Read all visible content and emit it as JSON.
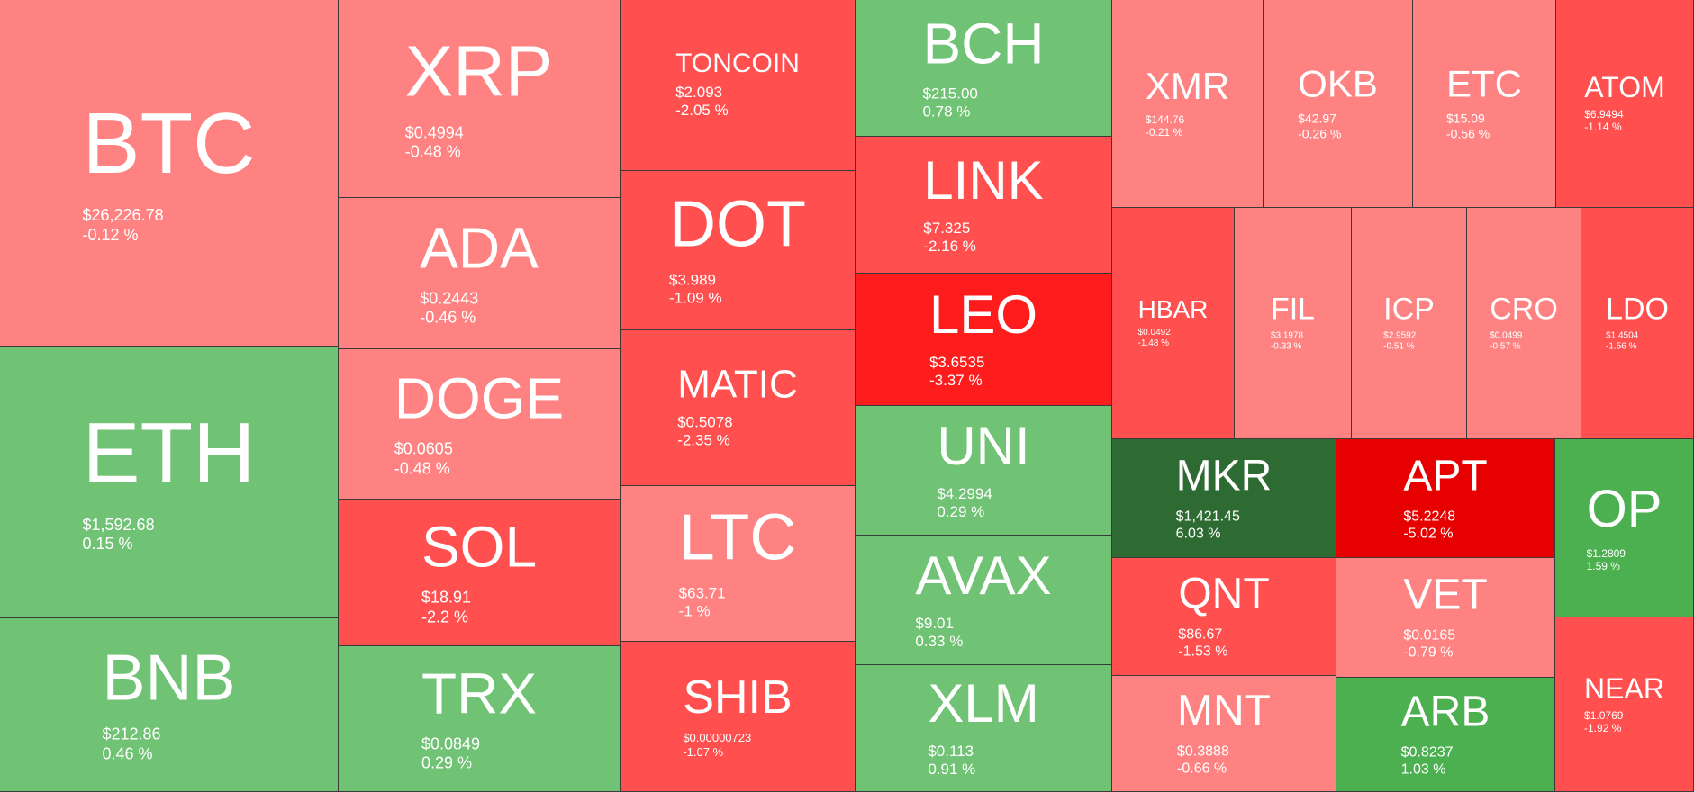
{
  "chart_data": {
    "type": "treemap",
    "colors": {
      "up_light": "#70c274",
      "up_mid": "#4caf50",
      "up_dark": "#2e6b33",
      "down_light": "#ff8282",
      "down_mid": "#ff4f4f",
      "down_strong": "#ff1c1c",
      "down_dark": "#e60000"
    },
    "tiles": [
      {
        "symbol": "BTC",
        "price": "$26,226.78",
        "change": "-0.12 %",
        "change_value": -0.12,
        "color": "#ff8282"
      },
      {
        "symbol": "ETH",
        "price": "$1,592.68",
        "change": "0.15 %",
        "change_value": 0.15,
        "color": "#70c274"
      },
      {
        "symbol": "BNB",
        "price": "$212.86",
        "change": "0.46 %",
        "change_value": 0.46,
        "color": "#70c274"
      },
      {
        "symbol": "XRP",
        "price": "$0.4994",
        "change": "-0.48 %",
        "change_value": -0.48,
        "color": "#ff8282"
      },
      {
        "symbol": "ADA",
        "price": "$0.2443",
        "change": "-0.46 %",
        "change_value": -0.46,
        "color": "#ff8282"
      },
      {
        "symbol": "DOGE",
        "price": "$0.0605",
        "change": "-0.48 %",
        "change_value": -0.48,
        "color": "#ff8282"
      },
      {
        "symbol": "SOL",
        "price": "$18.91",
        "change": "-2.2 %",
        "change_value": -2.2,
        "color": "#ff4f4f"
      },
      {
        "symbol": "TRX",
        "price": "$0.0849",
        "change": "0.29 %",
        "change_value": 0.29,
        "color": "#70c274"
      },
      {
        "symbol": "TONCOIN",
        "price": "$2.093",
        "change": "-2.05 %",
        "change_value": -2.05,
        "color": "#ff4f4f"
      },
      {
        "symbol": "DOT",
        "price": "$3.989",
        "change": "-1.09 %",
        "change_value": -1.09,
        "color": "#ff4f4f"
      },
      {
        "symbol": "MATIC",
        "price": "$0.5078",
        "change": "-2.35 %",
        "change_value": -2.35,
        "color": "#ff4f4f"
      },
      {
        "symbol": "LTC",
        "price": "$63.71",
        "change": "-1 %",
        "change_value": -1,
        "color": "#ff8282"
      },
      {
        "symbol": "SHIB",
        "price": "$0.00000723",
        "change": "-1.07 %",
        "change_value": -1.07,
        "color": "#ff4f4f"
      },
      {
        "symbol": "BCH",
        "price": "$215.00",
        "change": "0.78 %",
        "change_value": 0.78,
        "color": "#70c274"
      },
      {
        "symbol": "LINK",
        "price": "$7.325",
        "change": "-2.16 %",
        "change_value": -2.16,
        "color": "#ff4f4f"
      },
      {
        "symbol": "LEO",
        "price": "$3.6535",
        "change": "-3.37 %",
        "change_value": -3.37,
        "color": "#ff1c1c"
      },
      {
        "symbol": "UNI",
        "price": "$4.2994",
        "change": "0.29 %",
        "change_value": 0.29,
        "color": "#70c274"
      },
      {
        "symbol": "AVAX",
        "price": "$9.01",
        "change": "0.33 %",
        "change_value": 0.33,
        "color": "#70c274"
      },
      {
        "symbol": "XLM",
        "price": "$0.113",
        "change": "0.91 %",
        "change_value": 0.91,
        "color": "#70c274"
      },
      {
        "symbol": "XMR",
        "price": "$144.76",
        "change": "-0.21 %",
        "change_value": -0.21,
        "color": "#ff8282"
      },
      {
        "symbol": "OKB",
        "price": "$42.97",
        "change": "-0.26 %",
        "change_value": -0.26,
        "color": "#ff8282"
      },
      {
        "symbol": "ETC",
        "price": "$15.09",
        "change": "-0.56 %",
        "change_value": -0.56,
        "color": "#ff8282"
      },
      {
        "symbol": "ATOM",
        "price": "$6.9494",
        "change": "-1.14 %",
        "change_value": -1.14,
        "color": "#ff4f4f"
      },
      {
        "symbol": "HBAR",
        "price": "$0.0492",
        "change": "-1.48 %",
        "change_value": -1.48,
        "color": "#ff4f4f"
      },
      {
        "symbol": "FIL",
        "price": "$3.1978",
        "change": "-0.33 %",
        "change_value": -0.33,
        "color": "#ff8282"
      },
      {
        "symbol": "ICP",
        "price": "$2.9592",
        "change": "-0.51 %",
        "change_value": -0.51,
        "color": "#ff8282"
      },
      {
        "symbol": "CRO",
        "price": "$0.0499",
        "change": "-0.57 %",
        "change_value": -0.57,
        "color": "#ff8282"
      },
      {
        "symbol": "LDO",
        "price": "$1.4504",
        "change": "-1.56 %",
        "change_value": -1.56,
        "color": "#ff4f4f"
      },
      {
        "symbol": "MKR",
        "price": "$1,421.45",
        "change": "6.03 %",
        "change_value": 6.03,
        "color": "#2e6b33"
      },
      {
        "symbol": "APT",
        "price": "$5.2248",
        "change": "-5.02 %",
        "change_value": -5.02,
        "color": "#e60000"
      },
      {
        "symbol": "OP",
        "price": "$1.2809",
        "change": "1.59 %",
        "change_value": 1.59,
        "color": "#4caf50"
      },
      {
        "symbol": "QNT",
        "price": "$86.67",
        "change": "-1.53 %",
        "change_value": -1.53,
        "color": "#ff4f4f"
      },
      {
        "symbol": "VET",
        "price": "$0.0165",
        "change": "-0.79 %",
        "change_value": -0.79,
        "color": "#ff8282"
      },
      {
        "symbol": "MNT",
        "price": "$0.3888",
        "change": "-0.66 %",
        "change_value": -0.66,
        "color": "#ff8282"
      },
      {
        "symbol": "ARB",
        "price": "$0.8237",
        "change": "1.03 %",
        "change_value": 1.03,
        "color": "#4caf50"
      },
      {
        "symbol": "NEAR",
        "price": "$1.0769",
        "change": "-1.92 %",
        "change_value": -1.92,
        "color": "#ff4f4f"
      }
    ]
  }
}
